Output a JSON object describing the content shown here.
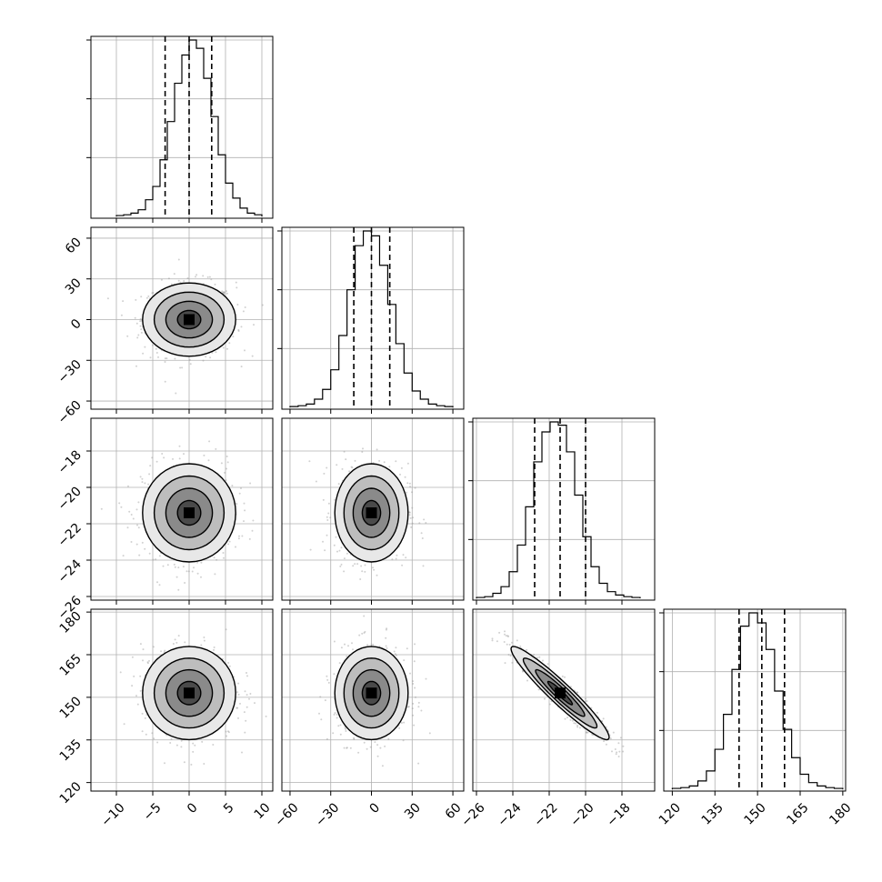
{
  "chart_data": {
    "type": "corner",
    "title": "",
    "parameters": [
      {
        "id": "p1",
        "range": [
          -13.5,
          11.5
        ],
        "ticks": [
          -10,
          -5,
          0,
          5,
          10
        ],
        "tick_labels": [
          "−10",
          "−5",
          "0",
          "5",
          "10"
        ],
        "median": 0,
        "quantiles": [
          -3.3,
          0,
          3.1
        ],
        "sigma": 3.2
      },
      {
        "id": "p2",
        "range": [
          -66,
          68
        ],
        "ticks": [
          -60,
          -30,
          0,
          30,
          60
        ],
        "tick_labels": [
          "−60",
          "−30",
          "0",
          "30",
          "60"
        ],
        "median": 0,
        "quantiles": [
          -13,
          0,
          13.5
        ],
        "sigma": 13.5
      },
      {
        "id": "p3",
        "range": [
          -26.2,
          -16.2
        ],
        "ticks": [
          -26,
          -24,
          -22,
          -20,
          -18
        ],
        "tick_labels": [
          "−26",
          "−24",
          "−22",
          "−20",
          "−18"
        ],
        "median": -21.4,
        "quantiles": [
          -22.8,
          -21.4,
          -20.0
        ],
        "sigma": 1.35
      },
      {
        "id": "p4",
        "range": [
          117,
          181
        ],
        "ticks": [
          120,
          135,
          150,
          165,
          180
        ],
        "tick_labels": [
          "120",
          "135",
          "150",
          "165",
          "180"
        ],
        "median": 151.5,
        "quantiles": [
          143.5,
          151.5,
          159.5
        ],
        "sigma": 8.2
      }
    ],
    "histograms": [
      {
        "param": "p1",
        "bins_range": [
          -10,
          10
        ],
        "counts": [
          0.5,
          1,
          2,
          4,
          10,
          18,
          34,
          57,
          80,
          97,
          106,
          101,
          83,
          60,
          37,
          20,
          11,
          5,
          2,
          1
        ]
      },
      {
        "param": "p2",
        "bins_range": [
          -60,
          60
        ],
        "counts": [
          0.5,
          1,
          2,
          5,
          11,
          23,
          44,
          72,
          99,
          108,
          105,
          87,
          63,
          39,
          21,
          10,
          5,
          2,
          1,
          0.5
        ]
      },
      {
        "param": "p3",
        "bins_range": [
          -26,
          -17
        ],
        "counts": [
          0.5,
          1,
          3,
          7,
          16,
          32,
          55,
          82,
          100,
          106,
          104,
          88,
          62,
          37,
          19,
          9,
          4,
          2,
          1,
          0.5
        ]
      },
      {
        "param": "p4",
        "bins_range": [
          120,
          180
        ],
        "counts": [
          0.5,
          1,
          2,
          5,
          11,
          24,
          45,
          72,
          98,
          106,
          100,
          84,
          59,
          36,
          19,
          9,
          4,
          2,
          1,
          0.5
        ]
      }
    ],
    "pairs": [
      {
        "x": "p1",
        "y": "p2",
        "correlation": 0.0
      },
      {
        "x": "p1",
        "y": "p3",
        "correlation": 0.0
      },
      {
        "x": "p2",
        "y": "p3",
        "correlation": 0.0
      },
      {
        "x": "p1",
        "y": "p4",
        "correlation": 0.0
      },
      {
        "x": "p2",
        "y": "p4",
        "correlation": 0.0
      },
      {
        "x": "p3",
        "y": "p4",
        "correlation": -0.95
      }
    ],
    "contour_levels_sigma": [
      0.5,
      1.0,
      1.5,
      2.0
    ],
    "grid": true,
    "legend": "none",
    "colors": {
      "line": "#000000",
      "points": "#9a9a9a",
      "grid": "#b0b0b0"
    }
  }
}
